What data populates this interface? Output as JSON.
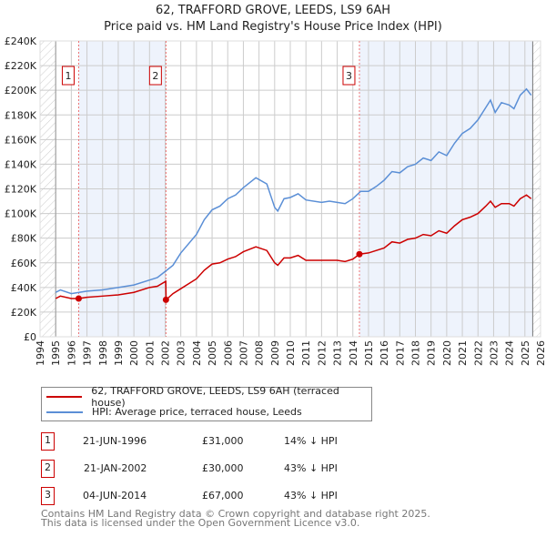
{
  "chart_data": {
    "type": "line",
    "title": "62, TRAFFORD GROVE, LEEDS, LS9 6AH",
    "subtitle": "Price paid vs. HM Land Registry's House Price Index (HPI)",
    "xlim": [
      1994,
      2026
    ],
    "ylim": [
      0,
      240000
    ],
    "x_ticks": [
      "1994",
      "1995",
      "1996",
      "1997",
      "1998",
      "1999",
      "2000",
      "2001",
      "2002",
      "2003",
      "2004",
      "2005",
      "2006",
      "2007",
      "2008",
      "2009",
      "2010",
      "2011",
      "2012",
      "2013",
      "2014",
      "2015",
      "2016",
      "2017",
      "2018",
      "2019",
      "2020",
      "2021",
      "2022",
      "2023",
      "2024",
      "2025",
      "2026"
    ],
    "y_ticks": [
      {
        "v": 0,
        "l": "£0"
      },
      {
        "v": 20000,
        "l": "£20K"
      },
      {
        "v": 40000,
        "l": "£40K"
      },
      {
        "v": 60000,
        "l": "£60K"
      },
      {
        "v": 80000,
        "l": "£80K"
      },
      {
        "v": 100000,
        "l": "£100K"
      },
      {
        "v": 120000,
        "l": "£120K"
      },
      {
        "v": 140000,
        "l": "£140K"
      },
      {
        "v": 160000,
        "l": "£160K"
      },
      {
        "v": 180000,
        "l": "£180K"
      },
      {
        "v": 200000,
        "l": "£200K"
      },
      {
        "v": 220000,
        "l": "£220K"
      },
      {
        "v": 240000,
        "l": "£240K"
      }
    ],
    "series": [
      {
        "name": "62, TRAFFORD GROVE, LEEDS, LS9 6AH (terraced house)",
        "color": "#cc0000",
        "x": [
          1995,
          1995.3,
          1996,
          1996.47,
          1997,
          1998,
          1999,
          2000,
          2001,
          2001.5,
          2002.04,
          2002.06,
          2002.5,
          2003,
          2004,
          2004.5,
          2005,
          2005.5,
          2006,
          2006.5,
          2007,
          2007.8,
          2008.5,
          2009,
          2009.2,
          2009.6,
          2010,
          2010.5,
          2011,
          2012,
          2013,
          2013.5,
          2014,
          2014.42,
          2015,
          2015.5,
          2016,
          2016.5,
          2017,
          2017.5,
          2018,
          2018.5,
          2019,
          2019.5,
          2020,
          2020.5,
          2021,
          2021.5,
          2022,
          2022.5,
          2022.8,
          2023.1,
          2023.5,
          2024,
          2024.3,
          2024.7,
          2025.1,
          2025.4
        ],
        "y": [
          31,
          33,
          31,
          31,
          32,
          33,
          34,
          36,
          40,
          41,
          45,
          30,
          35,
          39,
          47,
          54,
          59,
          60,
          63,
          65,
          69,
          73,
          70,
          60,
          58,
          64,
          64,
          66,
          62,
          62,
          62,
          61,
          63,
          67,
          68,
          70,
          72,
          77,
          76,
          79,
          80,
          83,
          82,
          86,
          84,
          90,
          95,
          97,
          100,
          106,
          110,
          105,
          108,
          108,
          106,
          112,
          115,
          112
        ]
      },
      {
        "name": "HPI: Average price, terraced house, Leeds",
        "color": "#5b8fd6",
        "x": [
          1995,
          1995.3,
          1996,
          1996.5,
          1997,
          1998,
          1999,
          2000,
          2001,
          2001.5,
          2002,
          2002.5,
          2003,
          2004,
          2004.5,
          2005,
          2005.5,
          2006,
          2006.5,
          2007,
          2007.8,
          2008.5,
          2009,
          2009.2,
          2009.6,
          2010,
          2010.5,
          2011,
          2012,
          2012.5,
          2013,
          2013.5,
          2014,
          2014.5,
          2015,
          2015.5,
          2016,
          2016.5,
          2017,
          2017.5,
          2018,
          2018.5,
          2019,
          2019.5,
          2020,
          2020.5,
          2021,
          2021.5,
          2022,
          2022.5,
          2022.8,
          2023.1,
          2023.5,
          2024,
          2024.3,
          2024.7,
          2025.1,
          2025.4
        ],
        "y": [
          36,
          38,
          35,
          36,
          37,
          38,
          40,
          42,
          46,
          48,
          53,
          58,
          68,
          83,
          95,
          103,
          106,
          112,
          115,
          121,
          129,
          124,
          105,
          102,
          112,
          113,
          116,
          111,
          109,
          110,
          109,
          108,
          112,
          118,
          118,
          122,
          127,
          134,
          133,
          138,
          140,
          145,
          143,
          150,
          147,
          157,
          165,
          169,
          176,
          186,
          192,
          182,
          190,
          188,
          185,
          196,
          201,
          196
        ]
      }
    ],
    "y_unit": "thousands GBP",
    "sales": [
      {
        "label": "1",
        "x": 1996.47,
        "y": 31
      },
      {
        "label": "2",
        "x": 2002.05,
        "y": 30
      },
      {
        "label": "3",
        "x": 2014.42,
        "y": 67
      }
    ]
  },
  "table": [
    {
      "n": "1",
      "date": "21-JUN-1996",
      "price": "£31,000",
      "hpi": "14% ↓ HPI"
    },
    {
      "n": "2",
      "date": "21-JAN-2002",
      "price": "£30,000",
      "hpi": "43% ↓ HPI"
    },
    {
      "n": "3",
      "date": "04-JUN-2014",
      "price": "£67,000",
      "hpi": "43% ↓ HPI"
    }
  ],
  "footer": [
    "Contains HM Land Registry data © Crown copyright and database right 2025.",
    "This data is licensed under the Open Government Licence v3.0."
  ]
}
